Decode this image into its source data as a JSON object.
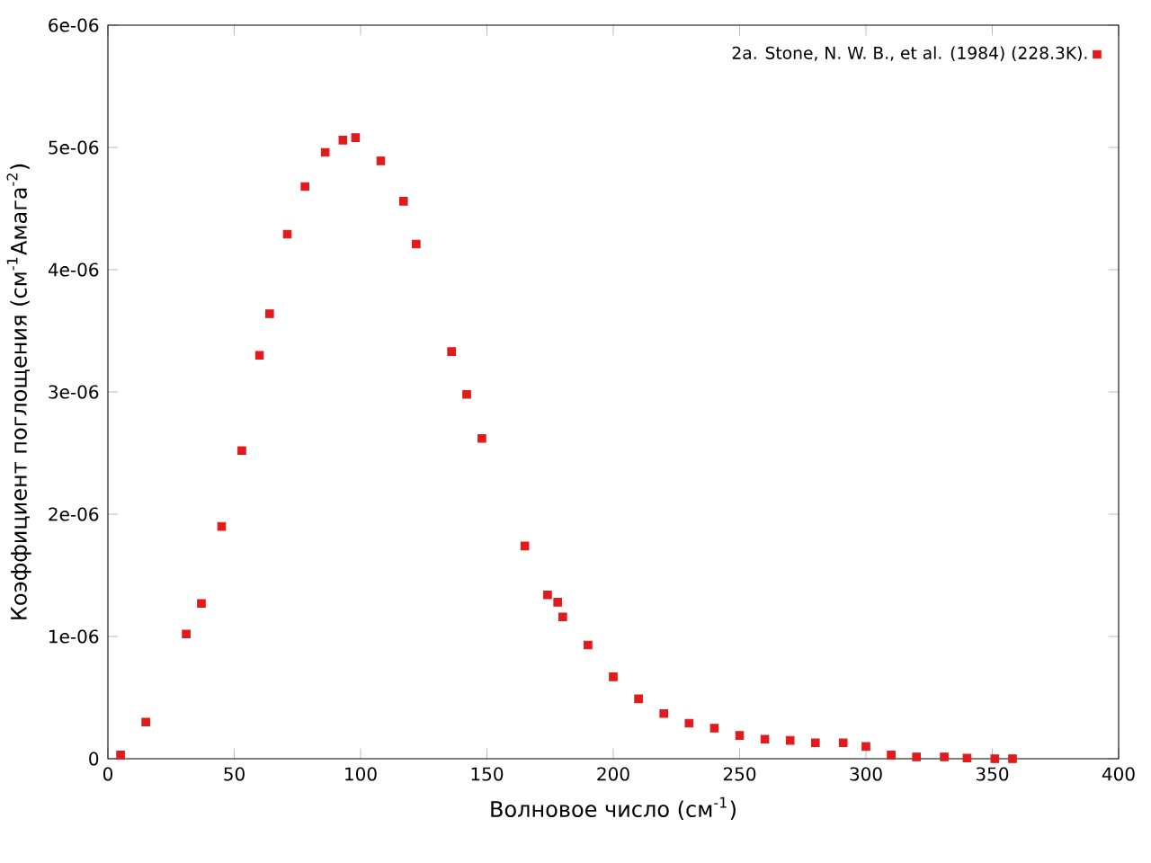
{
  "chart_data": {
    "type": "scatter",
    "xlabel": "Волновое число (см$^{-1}$)",
    "ylabel": "Коэффициент поглощения (см$^{-1}$Амага$^{-2}$)",
    "xlim": [
      0,
      400
    ],
    "xticks": [
      0,
      50,
      100,
      150,
      200,
      250,
      300,
      350,
      400
    ],
    "ylim": [
      0,
      6e-06
    ],
    "yticks": [
      0,
      {
        "value": 1e-06,
        "label": "1e-06"
      },
      {
        "value": 2e-06,
        "label": "2e-06"
      },
      {
        "value": 3e-06,
        "label": "3e-06"
      },
      {
        "value": 4e-06,
        "label": "4e-06"
      },
      {
        "value": 5e-06,
        "label": "5e-06"
      },
      {
        "value": 6e-06,
        "label": "6e-06"
      }
    ],
    "legend": "top right",
    "marker": "square",
    "grid": false,
    "series": [
      {
        "name": "2a. Stone, N. W. B., et al. (1984) (228.3K).",
        "color": "#e31a1c",
        "x": [
          5,
          15,
          31,
          37,
          45,
          53,
          60,
          64,
          71,
          78,
          86,
          93,
          98,
          108,
          117,
          122,
          136,
          142,
          148,
          165,
          174,
          178,
          180,
          190,
          200,
          210,
          220,
          230,
          240,
          250,
          260,
          270,
          280,
          291,
          300,
          310,
          320,
          331,
          340,
          351,
          358
        ],
        "values": [
          3e-08,
          3e-07,
          1.02e-06,
          1.27e-06,
          1.9e-06,
          2.52e-06,
          3.3e-06,
          3.64e-06,
          4.29e-06,
          4.68e-06,
          4.96e-06,
          5.06e-06,
          5.08e-06,
          4.89e-06,
          4.56e-06,
          4.21e-06,
          3.33e-06,
          2.98e-06,
          2.62e-06,
          1.74e-06,
          1.34e-06,
          1.28e-06,
          1.16e-06,
          9.3e-07,
          6.7e-07,
          4.9e-07,
          3.7e-07,
          2.9e-07,
          2.5e-07,
          1.9e-07,
          1.6e-07,
          1.5e-07,
          1.3e-07,
          1.3e-07,
          1e-07,
          3e-08,
          1.5e-08,
          1.5e-08,
          5e-09,
          0,
          0
        ]
      }
    ]
  }
}
